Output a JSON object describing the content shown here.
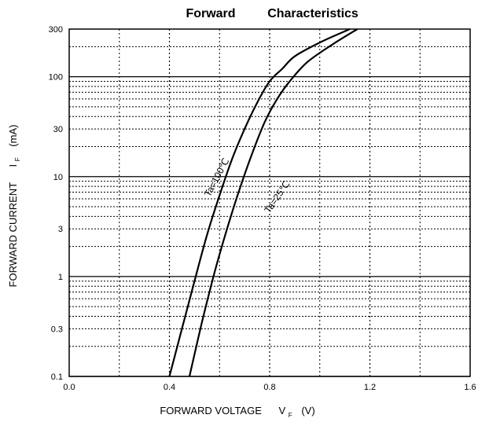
{
  "chart_data": {
    "type": "line",
    "title_part1": "Forward",
    "title_part2": "Characteristics",
    "xlabel_main": "FORWARD VOLTAGE",
    "xlabel_symbol": "V",
    "xlabel_sub": "F",
    "xlabel_unit": "(V)",
    "ylabel_main": "FORWARD CURRENT",
    "ylabel_symbol": "I",
    "ylabel_sub": "F",
    "ylabel_unit": "(mA)",
    "xlim": [
      0.0,
      1.6
    ],
    "ylim": [
      0.1,
      300
    ],
    "y_scale": "log",
    "grid": true,
    "x_ticks": [
      0.0,
      0.4,
      0.8,
      1.2,
      1.6
    ],
    "x_tick_labels": [
      "0.0",
      "0.4",
      "0.8",
      "1.2",
      "1.6"
    ],
    "y_ticks": [
      0.1,
      0.3,
      1,
      3,
      10,
      30,
      100,
      300
    ],
    "y_tick_labels": [
      "0.1",
      "0.3",
      "1",
      "3",
      "10",
      "30",
      "100",
      "300"
    ],
    "series": [
      {
        "name": "Ta=100℃",
        "x": [
          0.4,
          0.45,
          0.5,
          0.55,
          0.6,
          0.65,
          0.7,
          0.75,
          0.8,
          0.85,
          0.9,
          1.0,
          1.12
        ],
        "y": [
          0.1,
          0.3,
          0.9,
          2.6,
          6.5,
          15,
          30,
          55,
          90,
          120,
          160,
          220,
          300
        ]
      },
      {
        "name": "Ta=25℃",
        "x": [
          0.48,
          0.53,
          0.58,
          0.63,
          0.68,
          0.73,
          0.78,
          0.83,
          0.88,
          0.95,
          1.05,
          1.15
        ],
        "y": [
          0.1,
          0.35,
          1.1,
          3.0,
          7.5,
          17,
          35,
          60,
          90,
          140,
          210,
          300
        ]
      }
    ]
  }
}
